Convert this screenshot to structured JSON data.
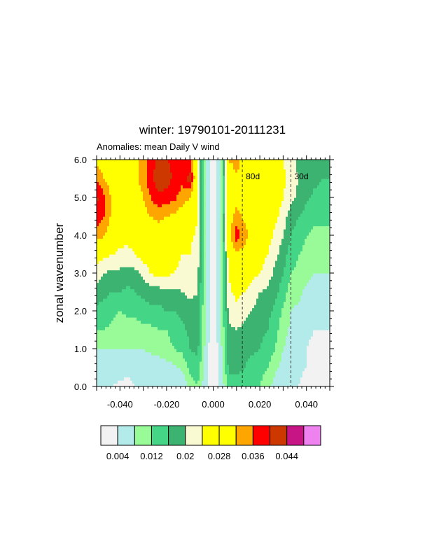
{
  "chart_data": {
    "type": "heatmap",
    "title": "winter: 19790101-20111231",
    "subtitle": "Anomalies: mean Daily V wind",
    "xlabel": "",
    "ylabel": "zonal wavenumber",
    "xlim": [
      -0.05,
      0.05
    ],
    "ylim": [
      0.0,
      6.0
    ],
    "x_ticks": [
      -0.04,
      -0.02,
      0.0,
      0.02,
      0.04
    ],
    "x_tick_labels": [
      "-0.040",
      "-0.020",
      "0.000",
      "0.020",
      "0.040"
    ],
    "y_ticks": [
      0,
      1,
      2,
      3,
      4,
      5,
      6
    ],
    "y_tick_labels": [
      "0.0",
      "1.0",
      "2.0",
      "3.0",
      "4.0",
      "5.0",
      "6.0"
    ],
    "x": [
      -0.05,
      -0.04667,
      -0.04333,
      -0.04,
      -0.03667,
      -0.03333,
      -0.03,
      -0.02667,
      -0.02333,
      -0.02,
      -0.01667,
      -0.01333,
      -0.01,
      -0.00667,
      -0.00333,
      0.0,
      0.00333,
      0.00667,
      0.01,
      0.01333,
      0.01667,
      0.02,
      0.02333,
      0.02667,
      0.03,
      0.03333,
      0.03667,
      0.04,
      0.04333,
      0.04667,
      0.05
    ],
    "y": [
      0,
      0.5,
      1,
      1.5,
      2,
      2.5,
      3,
      3.5,
      4,
      4.5,
      5,
      5.5,
      6
    ],
    "z": [
      [
        0.004,
        0.004,
        0.004,
        0.003,
        0.003,
        0.004,
        0.004,
        0.004,
        0.004,
        0.004,
        0.004,
        0.004,
        0.009,
        0.012,
        0.005,
        0.0,
        0.005,
        0.013,
        0.012,
        0.012,
        0.012,
        0.012,
        0.009,
        0.006,
        0.004,
        0.004,
        0.004,
        0.002,
        0.001,
        0.001,
        0.001
      ],
      [
        0.006,
        0.006,
        0.006,
        0.006,
        0.005,
        0.005,
        0.005,
        0.005,
        0.005,
        0.006,
        0.007,
        0.009,
        0.013,
        0.015,
        0.006,
        0.0,
        0.006,
        0.017,
        0.018,
        0.016,
        0.014,
        0.014,
        0.012,
        0.009,
        0.006,
        0.005,
        0.005,
        0.004,
        0.002,
        0.002,
        0.002
      ],
      [
        0.008,
        0.008,
        0.008,
        0.008,
        0.008,
        0.008,
        0.008,
        0.009,
        0.01,
        0.011,
        0.012,
        0.013,
        0.016,
        0.017,
        0.007,
        0.0,
        0.007,
        0.018,
        0.018,
        0.018,
        0.017,
        0.016,
        0.014,
        0.012,
        0.008,
        0.006,
        0.005,
        0.004,
        0.003,
        0.002,
        0.003
      ],
      [
        0.012,
        0.012,
        0.011,
        0.01,
        0.01,
        0.01,
        0.011,
        0.011,
        0.012,
        0.012,
        0.013,
        0.015,
        0.017,
        0.018,
        0.008,
        0.0,
        0.008,
        0.019,
        0.02,
        0.019,
        0.018,
        0.017,
        0.016,
        0.013,
        0.01,
        0.007,
        0.006,
        0.005,
        0.004,
        0.004,
        0.004
      ],
      [
        0.015,
        0.014,
        0.013,
        0.012,
        0.013,
        0.013,
        0.014,
        0.015,
        0.015,
        0.016,
        0.016,
        0.017,
        0.018,
        0.019,
        0.008,
        0.0,
        0.008,
        0.021,
        0.023,
        0.021,
        0.02,
        0.018,
        0.017,
        0.015,
        0.011,
        0.008,
        0.007,
        0.006,
        0.005,
        0.005,
        0.005
      ],
      [
        0.018,
        0.017,
        0.016,
        0.016,
        0.015,
        0.016,
        0.017,
        0.018,
        0.018,
        0.019,
        0.019,
        0.02,
        0.021,
        0.02,
        0.008,
        0.0,
        0.008,
        0.023,
        0.025,
        0.024,
        0.022,
        0.02,
        0.019,
        0.017,
        0.014,
        0.01,
        0.009,
        0.007,
        0.006,
        0.006,
        0.006
      ],
      [
        0.022,
        0.02,
        0.019,
        0.019,
        0.018,
        0.019,
        0.021,
        0.024,
        0.026,
        0.025,
        0.024,
        0.023,
        0.023,
        0.021,
        0.009,
        0.0,
        0.009,
        0.024,
        0.028,
        0.027,
        0.025,
        0.024,
        0.022,
        0.019,
        0.016,
        0.012,
        0.011,
        0.009,
        0.008,
        0.008,
        0.008
      ],
      [
        0.026,
        0.025,
        0.024,
        0.023,
        0.023,
        0.024,
        0.026,
        0.028,
        0.029,
        0.027,
        0.025,
        0.024,
        0.024,
        0.022,
        0.009,
        0.0,
        0.009,
        0.026,
        0.031,
        0.03,
        0.027,
        0.026,
        0.024,
        0.021,
        0.018,
        0.014,
        0.012,
        0.011,
        0.01,
        0.01,
        0.01
      ],
      [
        0.034,
        0.032,
        0.028,
        0.026,
        0.025,
        0.026,
        0.028,
        0.029,
        0.03,
        0.028,
        0.026,
        0.025,
        0.025,
        0.023,
        0.009,
        0.0,
        0.009,
        0.03,
        0.038,
        0.034,
        0.03,
        0.028,
        0.026,
        0.023,
        0.02,
        0.016,
        0.014,
        0.012,
        0.011,
        0.011,
        0.011
      ],
      [
        0.038,
        0.036,
        0.031,
        0.028,
        0.027,
        0.028,
        0.03,
        0.032,
        0.033,
        0.032,
        0.031,
        0.029,
        0.028,
        0.024,
        0.009,
        0.0,
        0.009,
        0.029,
        0.034,
        0.031,
        0.03,
        0.029,
        0.027,
        0.025,
        0.022,
        0.018,
        0.016,
        0.014,
        0.013,
        0.013,
        0.013
      ],
      [
        0.041,
        0.037,
        0.031,
        0.028,
        0.028,
        0.029,
        0.032,
        0.036,
        0.039,
        0.038,
        0.037,
        0.034,
        0.032,
        0.025,
        0.009,
        0.0,
        0.009,
        0.028,
        0.03,
        0.029,
        0.029,
        0.029,
        0.028,
        0.027,
        0.024,
        0.021,
        0.019,
        0.017,
        0.015,
        0.015,
        0.015
      ],
      [
        0.035,
        0.032,
        0.029,
        0.028,
        0.029,
        0.031,
        0.034,
        0.039,
        0.043,
        0.042,
        0.039,
        0.037,
        0.042,
        0.025,
        0.009,
        0.0,
        0.009,
        0.028,
        0.031,
        0.03,
        0.029,
        0.029,
        0.028,
        0.027,
        0.025,
        0.022,
        0.02,
        0.018,
        0.017,
        0.016,
        0.016
      ],
      [
        0.031,
        0.03,
        0.029,
        0.028,
        0.029,
        0.031,
        0.034,
        0.038,
        0.041,
        0.04,
        0.039,
        0.038,
        0.037,
        0.025,
        0.009,
        0.0,
        0.009,
        0.032,
        0.034,
        0.03,
        0.028,
        0.028,
        0.027,
        0.026,
        0.024,
        0.021,
        0.019,
        0.018,
        0.017,
        0.017,
        0.017
      ]
    ],
    "contour_levels": [
      0.004,
      0.008,
      0.012,
      0.016,
      0.02,
      0.024,
      0.028,
      0.032,
      0.036,
      0.04,
      0.044,
      0.048
    ],
    "fill_colors": [
      "#f2f2f2",
      "#b2ebe9",
      "#98fb98",
      "#45d587",
      "#3cb371",
      "#fafad2",
      "#ffff00",
      "#ffff00",
      "#ffa500",
      "#ff0000",
      "#cd3700",
      "#c71585",
      "#ee82ee"
    ],
    "reference_lines": [
      {
        "x": 0.0125,
        "label": "80d"
      },
      {
        "x": 0.03333,
        "label": "30d"
      }
    ],
    "colorbar_tick_labels": [
      "0.004",
      "0.012",
      "0.02",
      "0.028",
      "0.036",
      "0.044"
    ],
    "colorbar_tick_levels": [
      0.004,
      0.012,
      0.02,
      0.028,
      0.036,
      0.044
    ],
    "grid": false,
    "legend": "horizontal colorbar below plot"
  }
}
